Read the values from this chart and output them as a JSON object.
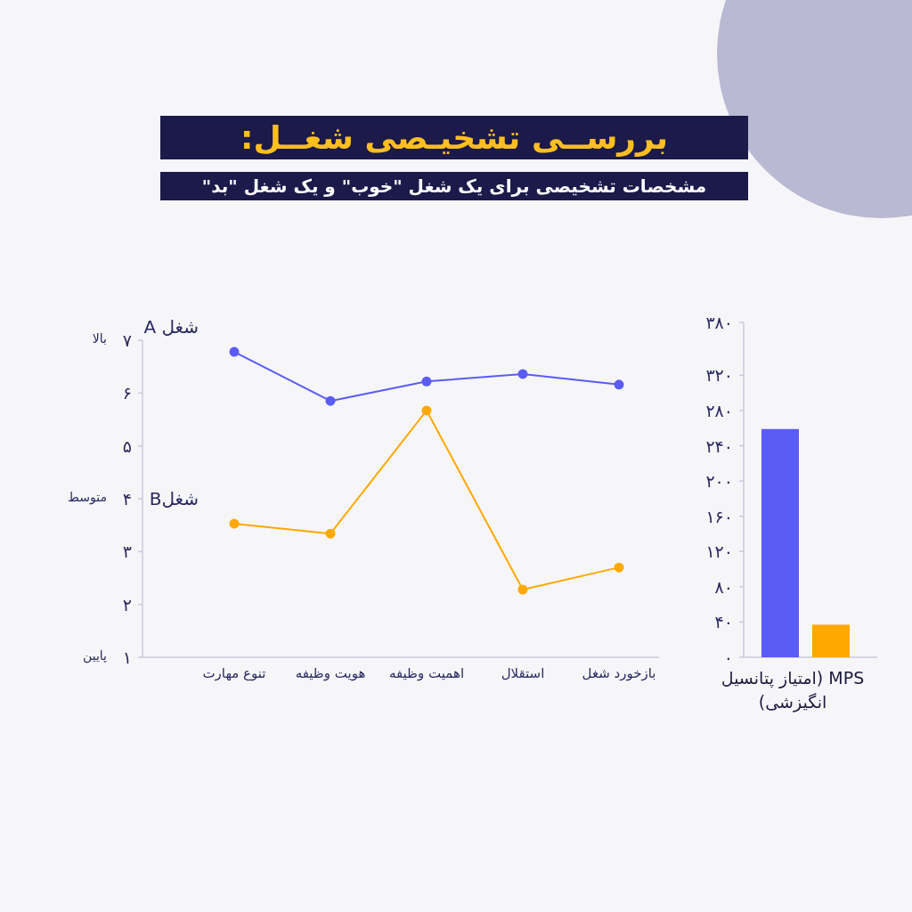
{
  "chart_data": [
    {
      "type": "line",
      "title": "بررســی تشخیـصی شغــل:",
      "subtitle": "مشخصات تشخیصی برای یک شغل \"خوب\" و یک شغل \"بد\"",
      "categories": [
        "تنوع مهارت",
        "هویت وظیفه",
        "اهمیت وظیفه",
        "استقلال",
        "بازخورد شغل"
      ],
      "series": [
        {
          "name": "شغل A",
          "color": "#5b5bf5",
          "values": [
            6.78,
            5.85,
            6.22,
            6.36,
            6.16
          ]
        },
        {
          "name": "شغلB",
          "color": "#ffa800",
          "values": [
            3.53,
            3.34,
            5.67,
            2.28,
            2.7
          ]
        }
      ],
      "ylim": [
        1,
        7
      ],
      "yticks": [
        {
          "value": 1,
          "label": "۱"
        },
        {
          "value": 2,
          "label": "۲"
        },
        {
          "value": 3,
          "label": "۳"
        },
        {
          "value": 4,
          "label": "۴"
        },
        {
          "value": 5,
          "label": "۵"
        },
        {
          "value": 6,
          "label": "۶"
        },
        {
          "value": 7,
          "label": "۷"
        }
      ],
      "annotations": [
        "بالا",
        "متوسط",
        "پایین"
      ],
      "marker": "circle",
      "grid": false,
      "legend": false
    },
    {
      "type": "bar",
      "xlabel": "MPS (امتیاز پتانسیل انگیزشی)",
      "categories": [
        null,
        null
      ],
      "values": [
        259,
        37
      ],
      "colors": [
        "#5b5bf5",
        "#ffa800"
      ],
      "ylim": [
        0,
        380
      ],
      "yticks": [
        {
          "value": 0,
          "label": "۰"
        },
        {
          "value": 40,
          "label": "۴۰"
        },
        {
          "value": 80,
          "label": "۸۰"
        },
        {
          "value": 120,
          "label": "۱۲۰"
        },
        {
          "value": 160,
          "label": "۱۶۰"
        },
        {
          "value": 200,
          "label": "۲۰۰"
        },
        {
          "value": 240,
          "label": "۲۴۰"
        },
        {
          "value": 280,
          "label": "۲۸۰"
        },
        {
          "value": 320,
          "label": "۳۲۰"
        },
        {
          "value": 380,
          "label": "۳۸۰"
        }
      ],
      "grid": false,
      "legend": false
    }
  ]
}
